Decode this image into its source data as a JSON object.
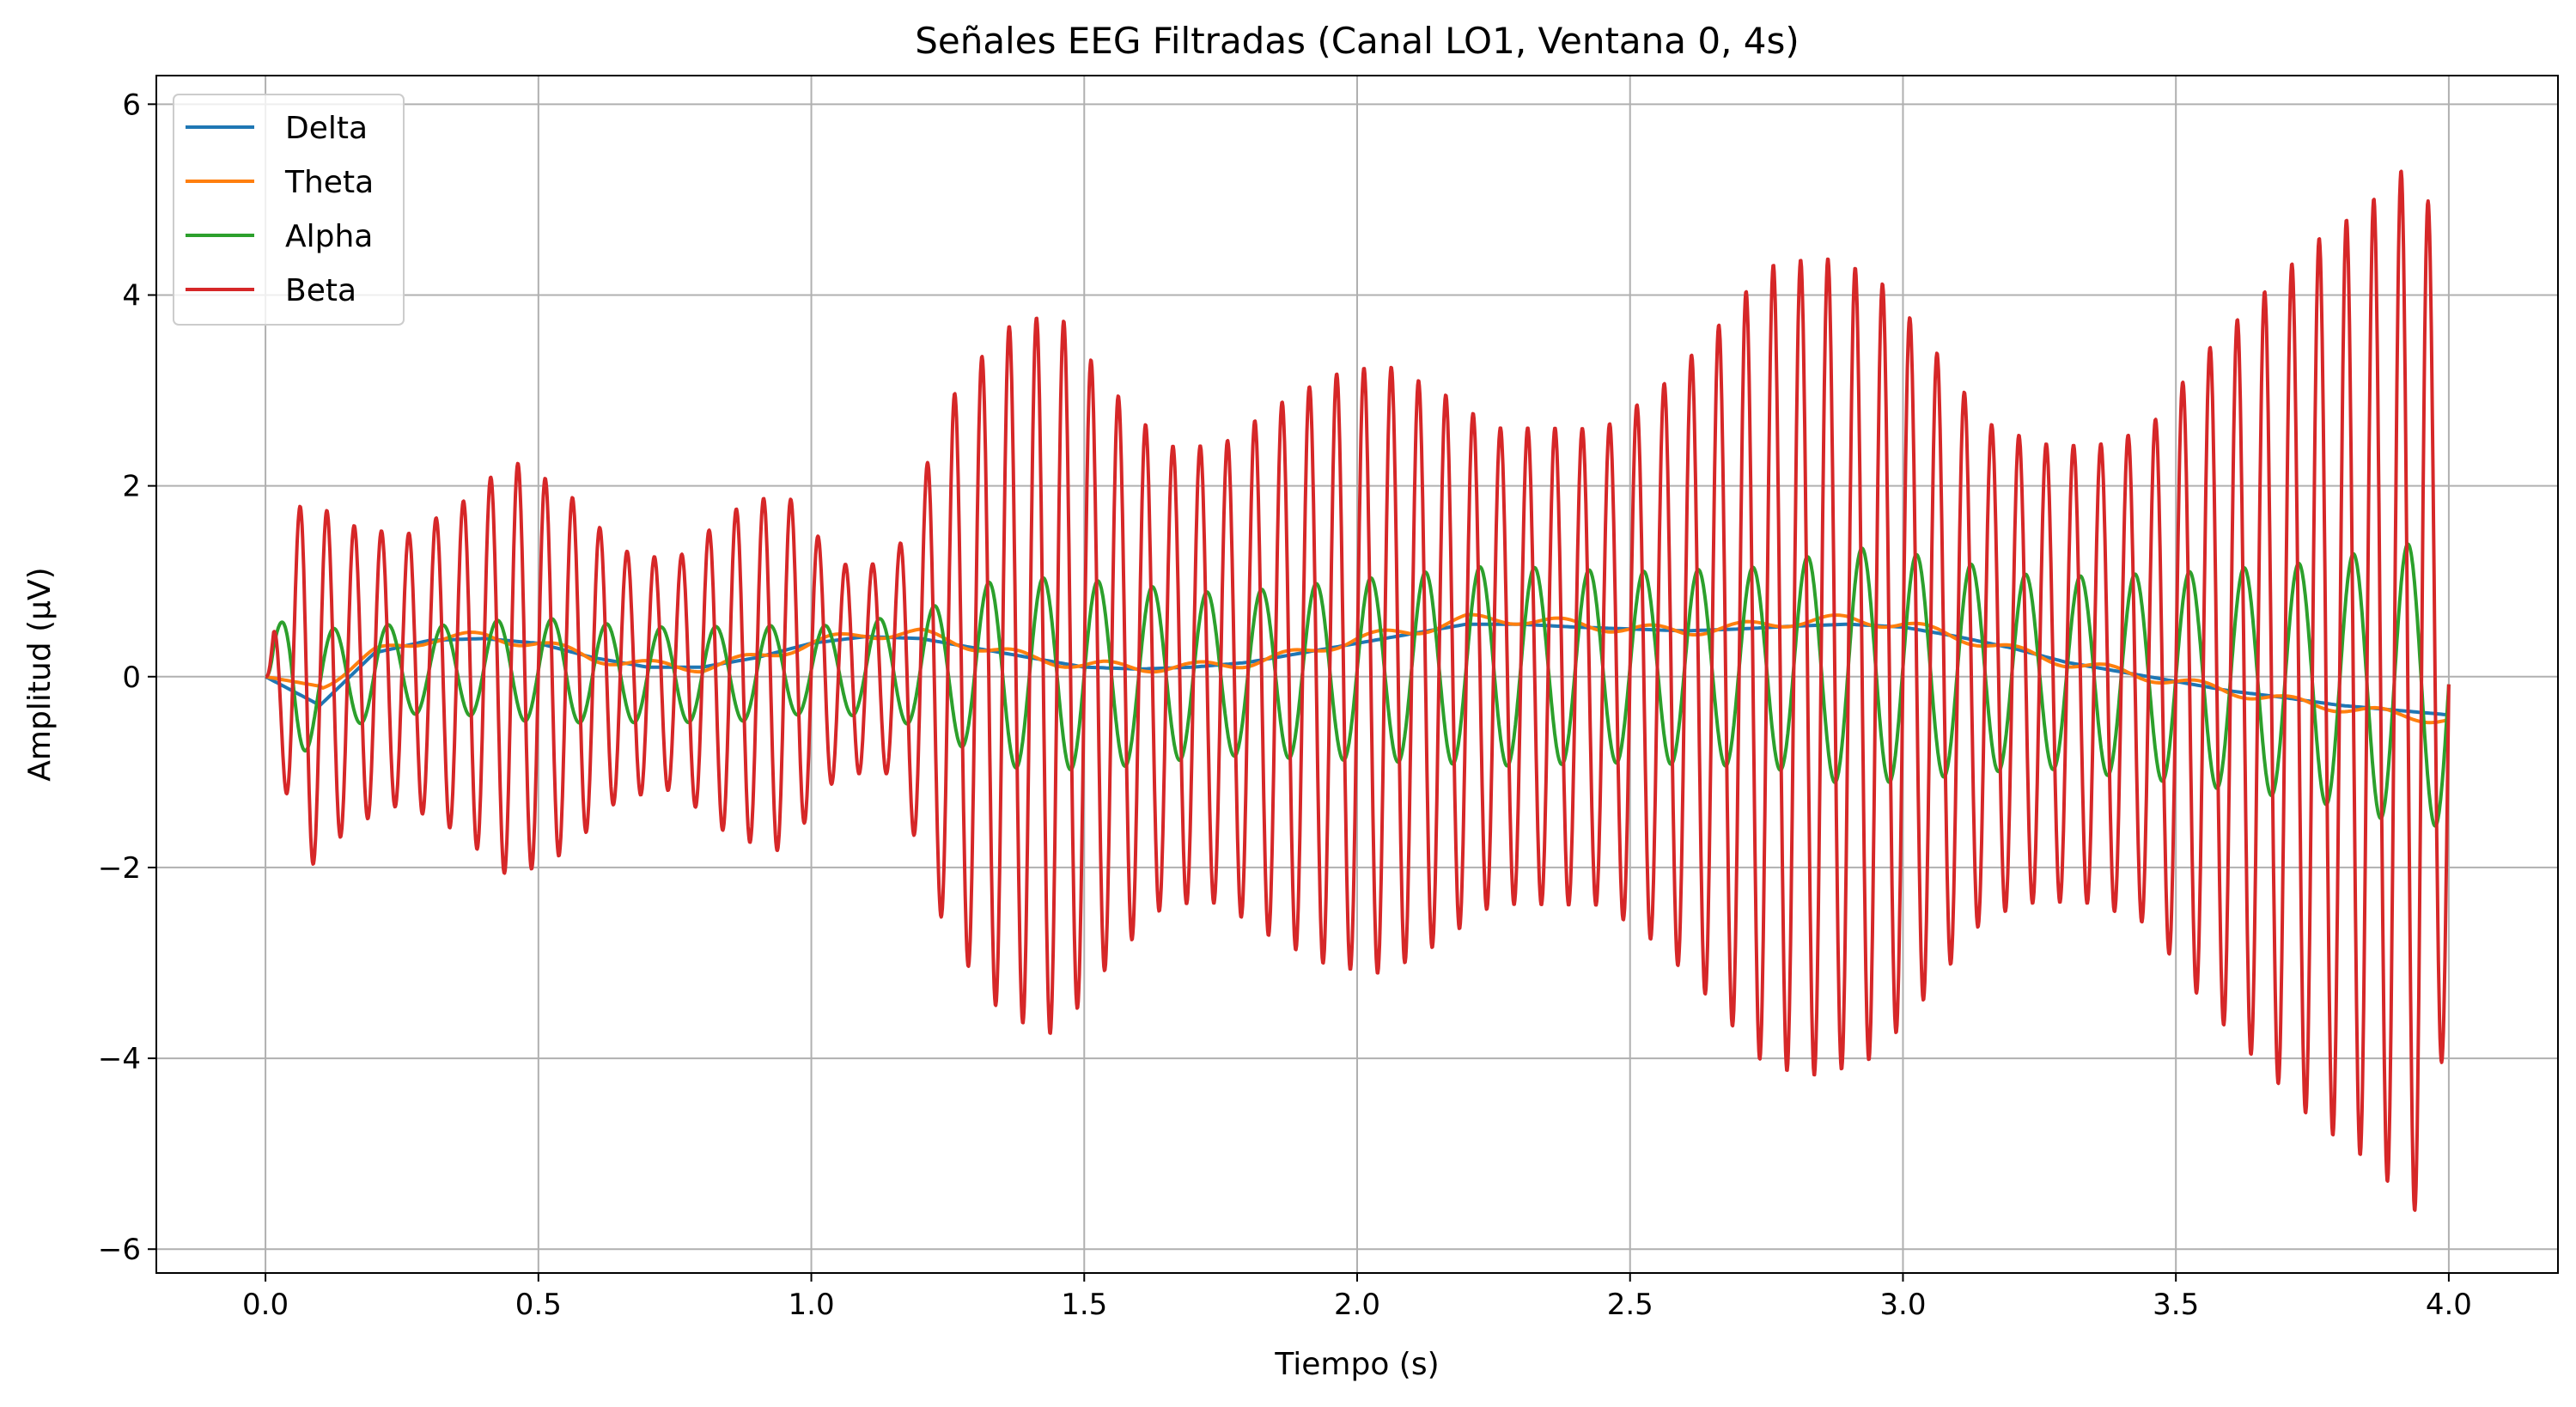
{
  "chart_data": {
    "type": "line",
    "title": "Señales EEG Filtradas (Canal LO1, Ventana 0, 4s)",
    "xlabel": "Tiempo (s)",
    "ylabel": "Amplitud (µV)",
    "xlim": [
      -0.2,
      4.2
    ],
    "ylim": [
      -6.25,
      6.3
    ],
    "xticks": [
      0.0,
      0.5,
      1.0,
      1.5,
      2.0,
      2.5,
      3.0,
      3.5,
      4.0
    ],
    "xtick_labels": [
      "0.0",
      "0.5",
      "1.0",
      "1.5",
      "2.0",
      "2.5",
      "3.0",
      "3.5",
      "4.0"
    ],
    "yticks": [
      -6,
      -4,
      -2,
      0,
      2,
      4,
      6
    ],
    "ytick_labels": [
      "−6",
      "−4",
      "−2",
      "0",
      "2",
      "4",
      "6"
    ],
    "grid": true,
    "legend_position": "top-left",
    "series": [
      {
        "name": "Delta",
        "color": "#1f77b4",
        "x": [
          0.0,
          0.1,
          0.2,
          0.3,
          0.4,
          0.5,
          0.6,
          0.7,
          0.8,
          0.9,
          1.0,
          1.1,
          1.2,
          1.3,
          1.4,
          1.5,
          1.6,
          1.7,
          1.8,
          1.9,
          2.0,
          2.1,
          2.2,
          2.3,
          2.4,
          2.5,
          2.6,
          2.7,
          2.8,
          2.9,
          3.0,
          3.1,
          3.2,
          3.3,
          3.4,
          3.5,
          3.6,
          3.7,
          3.8,
          3.9,
          4.0
        ],
        "values": [
          0.0,
          -0.3,
          0.25,
          0.38,
          0.4,
          0.35,
          0.2,
          0.1,
          0.1,
          0.2,
          0.35,
          0.42,
          0.4,
          0.3,
          0.2,
          0.1,
          0.08,
          0.1,
          0.15,
          0.25,
          0.35,
          0.45,
          0.55,
          0.55,
          0.52,
          0.5,
          0.48,
          0.5,
          0.53,
          0.55,
          0.52,
          0.42,
          0.3,
          0.15,
          0.05,
          -0.05,
          -0.15,
          -0.22,
          -0.3,
          -0.35,
          -0.4
        ]
      },
      {
        "name": "Theta",
        "color": "#ff7f0e",
        "x": [
          0.0,
          0.1,
          0.2,
          0.3,
          0.4,
          0.5,
          0.6,
          0.7,
          0.8,
          0.9,
          1.0,
          1.1,
          1.2,
          1.3,
          1.4,
          1.5,
          1.6,
          1.7,
          1.8,
          1.9,
          2.0,
          2.1,
          2.2,
          2.3,
          2.4,
          2.5,
          2.6,
          2.7,
          2.8,
          2.9,
          3.0,
          3.1,
          3.2,
          3.3,
          3.4,
          3.5,
          3.6,
          3.7,
          3.8,
          3.9,
          4.0
        ],
        "values": [
          0.0,
          -0.1,
          0.25,
          0.4,
          0.42,
          0.35,
          0.2,
          0.12,
          0.1,
          0.2,
          0.35,
          0.45,
          0.45,
          0.32,
          0.2,
          0.12,
          0.1,
          0.1,
          0.15,
          0.25,
          0.4,
          0.48,
          0.6,
          0.6,
          0.55,
          0.5,
          0.48,
          0.52,
          0.58,
          0.6,
          0.55,
          0.42,
          0.28,
          0.15,
          0.05,
          -0.05,
          -0.15,
          -0.25,
          -0.32,
          -0.4,
          -0.45
        ]
      },
      {
        "name": "Alpha",
        "color": "#2ca02c",
        "freq_hz": 10,
        "envelope_t": [
          0.0,
          0.05,
          0.1,
          0.3,
          0.5,
          0.7,
          0.9,
          1.0,
          1.1,
          1.2,
          1.35,
          1.5,
          1.75,
          2.0,
          2.25,
          2.5,
          2.75,
          2.9,
          3.0,
          3.25,
          3.5,
          3.75,
          3.9,
          4.0
        ],
        "envelope_amp": [
          0.2,
          0.9,
          0.55,
          0.45,
          0.55,
          0.5,
          0.5,
          0.45,
          0.5,
          0.6,
          1.0,
          1.0,
          0.85,
          0.95,
          1.05,
          1.0,
          1.05,
          1.25,
          1.2,
          1.0,
          1.1,
          1.25,
          1.45,
          1.5
        ]
      },
      {
        "name": "Beta",
        "color": "#d62728",
        "freq_hz": 20,
        "envelope_t": [
          0.0,
          0.03,
          0.07,
          0.15,
          0.25,
          0.35,
          0.45,
          0.55,
          0.65,
          0.75,
          0.85,
          0.95,
          1.05,
          1.15,
          1.25,
          1.35,
          1.45,
          1.55,
          1.65,
          1.75,
          1.85,
          1.95,
          2.05,
          2.15,
          2.25,
          2.35,
          2.45,
          2.55,
          2.65,
          2.75,
          2.85,
          2.95,
          3.05,
          3.15,
          3.25,
          3.35,
          3.45,
          3.55,
          3.65,
          3.75,
          3.85,
          3.95,
          4.0
        ],
        "envelope_amp": [
          0.0,
          1.0,
          2.0,
          1.6,
          1.4,
          1.7,
          2.2,
          1.9,
          1.3,
          1.2,
          1.7,
          1.9,
          1.1,
          1.1,
          2.8,
          3.6,
          3.8,
          3.0,
          2.4,
          2.4,
          2.8,
          3.1,
          3.2,
          2.9,
          2.5,
          2.5,
          2.5,
          2.9,
          3.5,
          4.2,
          4.3,
          4.1,
          3.4,
          2.6,
          2.4,
          2.4,
          2.6,
          3.4,
          4.0,
          4.6,
          5.0,
          5.6,
          3.4
        ]
      }
    ]
  }
}
